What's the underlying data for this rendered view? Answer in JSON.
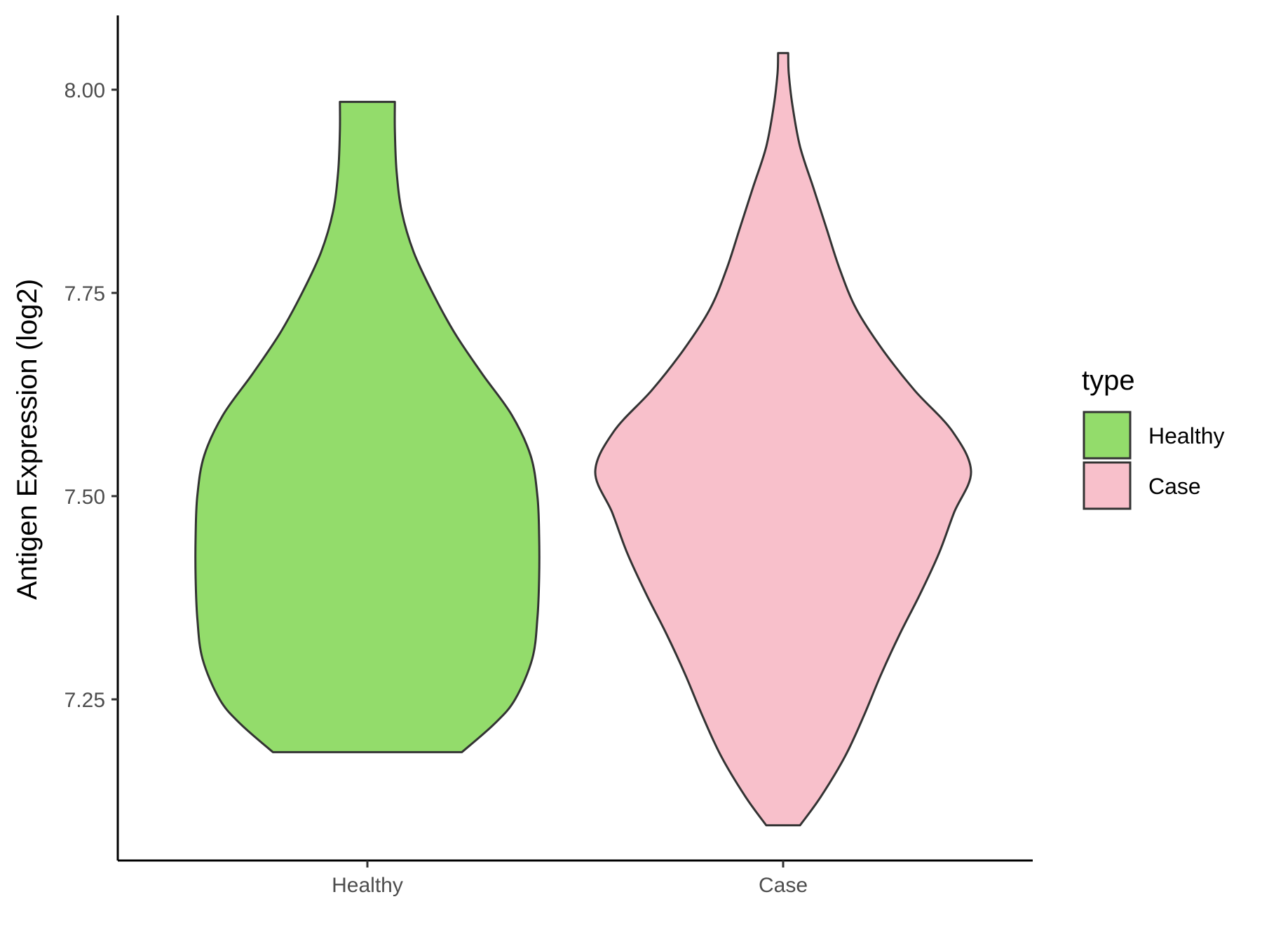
{
  "chart_data": {
    "type": "violin",
    "title": "",
    "xlabel": "",
    "ylabel": "Antigen Expression (log2)",
    "ylim": [
      7.055,
      8.09
    ],
    "yticks": [
      "7.25",
      "7.50",
      "7.75",
      "8.00"
    ],
    "ytick_values": [
      7.25,
      7.5,
      7.75,
      8.0
    ],
    "categories": [
      "Healthy",
      "Case"
    ],
    "grid": false,
    "legend": {
      "title": "type",
      "position": "right"
    },
    "series": [
      {
        "name": "Healthy",
        "color": "#93dc6b",
        "min": 7.185,
        "max": 7.985,
        "density_profile": [
          [
            7.185,
            0.55
          ],
          [
            7.22,
            0.74
          ],
          [
            7.25,
            0.86
          ],
          [
            7.3,
            0.96
          ],
          [
            7.35,
            0.99
          ],
          [
            7.4,
            1.0
          ],
          [
            7.45,
            1.0
          ],
          [
            7.5,
            0.99
          ],
          [
            7.55,
            0.95
          ],
          [
            7.6,
            0.84
          ],
          [
            7.65,
            0.67
          ],
          [
            7.7,
            0.51
          ],
          [
            7.75,
            0.38
          ],
          [
            7.8,
            0.27
          ],
          [
            7.85,
            0.2
          ],
          [
            7.9,
            0.17
          ],
          [
            7.95,
            0.16
          ],
          [
            7.985,
            0.16
          ]
        ]
      },
      {
        "name": "Case",
        "color": "#f8c0cb",
        "min": 7.095,
        "max": 8.045,
        "density_profile": [
          [
            7.095,
            0.09
          ],
          [
            7.13,
            0.2
          ],
          [
            7.18,
            0.33
          ],
          [
            7.23,
            0.43
          ],
          [
            7.28,
            0.52
          ],
          [
            7.33,
            0.62
          ],
          [
            7.38,
            0.73
          ],
          [
            7.43,
            0.83
          ],
          [
            7.48,
            0.91
          ],
          [
            7.53,
            1.0
          ],
          [
            7.58,
            0.9
          ],
          [
            7.63,
            0.7
          ],
          [
            7.68,
            0.53
          ],
          [
            7.73,
            0.39
          ],
          [
            7.78,
            0.3
          ],
          [
            7.83,
            0.23
          ],
          [
            7.88,
            0.16
          ],
          [
            7.93,
            0.09
          ],
          [
            7.98,
            0.05
          ],
          [
            8.02,
            0.03
          ],
          [
            8.045,
            0.027
          ]
        ]
      }
    ]
  }
}
